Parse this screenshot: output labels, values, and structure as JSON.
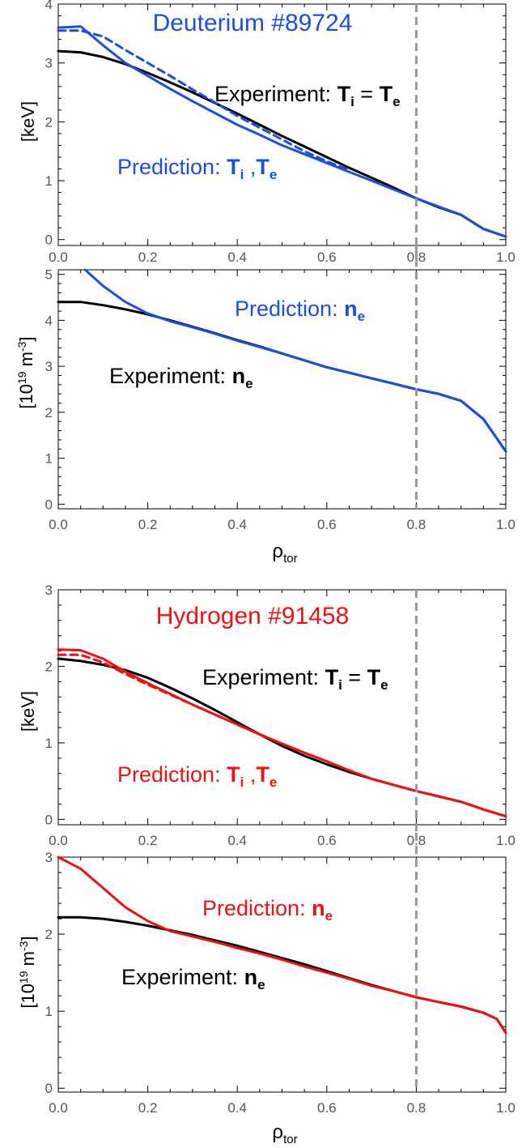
{
  "figure": {
    "marker_x": 0.8,
    "colors": {
      "deuterium": "#1a4fe0",
      "hydrogen": "#ee1111",
      "experiment": "#000000",
      "marker": "#999999"
    }
  },
  "chart_data": [
    {
      "type": "line",
      "panel": "deuterium-temperature",
      "title": "Deuterium #89724",
      "xlabel": "",
      "ylabel": "[keV]",
      "xlim": [
        0.0,
        1.0
      ],
      "ylim": [
        -0.1,
        4.0
      ],
      "xticks": [
        "0.0",
        "0.2",
        "0.4",
        "0.6",
        "0.8",
        "1.0"
      ],
      "yticks": [
        {
          "v": 0,
          "label": "0"
        },
        {
          "v": 1,
          "label": "1"
        },
        {
          "v": 2,
          "label": "2"
        },
        {
          "v": 3,
          "label": "3"
        },
        {
          "v": 4,
          "label": "4"
        }
      ],
      "series": [
        {
          "color": "#000000",
          "dash": false,
          "x": [
            0.0,
            0.05,
            0.1,
            0.15,
            0.2,
            0.25,
            0.3,
            0.35,
            0.4,
            0.45,
            0.5,
            0.55,
            0.6,
            0.65,
            0.7,
            0.75,
            0.8,
            0.85,
            0.9,
            0.95,
            1.0
          ],
          "y": [
            3.2,
            3.18,
            3.1,
            2.98,
            2.83,
            2.67,
            2.5,
            2.32,
            2.14,
            1.95,
            1.76,
            1.58,
            1.4,
            1.22,
            1.05,
            0.88,
            0.7,
            0.55,
            0.42,
            0.18,
            0.05
          ]
        },
        {
          "color": "#1a4fe0",
          "dash": false,
          "x": [
            0.0,
            0.05,
            0.1,
            0.15,
            0.2,
            0.25,
            0.3,
            0.35,
            0.4,
            0.45,
            0.5,
            0.55,
            0.6,
            0.65,
            0.7,
            0.75,
            0.8,
            0.85,
            0.9,
            0.95,
            1.0
          ],
          "y": [
            3.6,
            3.62,
            3.3,
            3.0,
            2.78,
            2.56,
            2.35,
            2.15,
            1.95,
            1.78,
            1.6,
            1.45,
            1.3,
            1.15,
            1.0,
            0.85,
            0.7,
            0.56,
            0.42,
            0.18,
            0.05
          ]
        },
        {
          "color": "#1a4fe0",
          "dash": true,
          "x": [
            0.0,
            0.05,
            0.1,
            0.15,
            0.2,
            0.25,
            0.3,
            0.35,
            0.4,
            0.45,
            0.5,
            0.55,
            0.6,
            0.65
          ],
          "y": [
            3.55,
            3.55,
            3.45,
            3.22,
            3.0,
            2.78,
            2.55,
            2.33,
            2.1,
            1.9,
            1.7,
            1.5,
            1.33,
            1.18
          ]
        }
      ],
      "annotations": [
        {
          "text": "Experiment: ",
          "em": "T",
          "sub": "i",
          "rest": " = ",
          "em2": "T",
          "sub2": "e",
          "color": "#000000"
        },
        {
          "text": "Prediction: ",
          "em": "T",
          "sub": "i",
          "rest": " ,",
          "em2": "T",
          "sub2": "e",
          "color": "#1a4fe0"
        }
      ]
    },
    {
      "type": "line",
      "panel": "deuterium-density",
      "title": "",
      "xlabel": "ρ",
      "xlabel_sub": "tor",
      "ylabel": "[10",
      "ylabel_sup": "19",
      "ylabel_unit": " m",
      "ylabel_sup2": "-3",
      "ylabel_end": "]",
      "xlim": [
        0.0,
        1.0
      ],
      "ylim": [
        -0.1,
        5.1
      ],
      "xticks": [
        "0.0",
        "0.2",
        "0.4",
        "0.6",
        "0.8",
        "1.0"
      ],
      "yticks": [
        {
          "v": 0,
          "label": "0"
        },
        {
          "v": 1,
          "label": "1"
        },
        {
          "v": 2,
          "label": "2"
        },
        {
          "v": 3,
          "label": "3"
        },
        {
          "v": 4,
          "label": "4"
        },
        {
          "v": 5,
          "label": "5"
        }
      ],
      "series": [
        {
          "color": "#000000",
          "dash": false,
          "x": [
            0.0,
            0.05,
            0.1,
            0.15,
            0.2,
            0.25,
            0.3,
            0.35,
            0.4,
            0.45,
            0.5,
            0.55,
            0.6,
            0.65,
            0.7,
            0.75,
            0.8,
            0.85,
            0.9,
            0.95,
            1.0
          ],
          "y": [
            4.4,
            4.4,
            4.33,
            4.24,
            4.13,
            4.0,
            3.86,
            3.72,
            3.57,
            3.43,
            3.28,
            3.13,
            2.98,
            2.86,
            2.74,
            2.62,
            2.5,
            2.4,
            2.25,
            1.85,
            1.15
          ]
        },
        {
          "color": "#1a4fe0",
          "dash": false,
          "x": [
            0.06,
            0.1,
            0.15,
            0.2,
            0.25,
            0.3,
            0.35,
            0.4,
            0.45,
            0.5,
            0.55,
            0.6,
            0.65,
            0.7,
            0.75,
            0.8,
            0.85,
            0.9,
            0.95,
            1.0
          ],
          "y": [
            5.1,
            4.75,
            4.4,
            4.15,
            3.98,
            3.85,
            3.71,
            3.56,
            3.42,
            3.28,
            3.13,
            2.98,
            2.86,
            2.74,
            2.62,
            2.5,
            2.4,
            2.25,
            1.85,
            1.15
          ]
        }
      ],
      "annotations": [
        {
          "text": "Prediction: ",
          "em": "n",
          "sub": "e",
          "color": "#1a4fe0"
        },
        {
          "text": "Experiment: ",
          "em": "n",
          "sub": "e",
          "color": "#000000"
        }
      ]
    },
    {
      "type": "line",
      "panel": "hydrogen-temperature",
      "title": "Hydrogen #91458",
      "xlabel": "",
      "ylabel": "[keV]",
      "xlim": [
        0.0,
        1.0
      ],
      "ylim": [
        -0.07,
        3.0
      ],
      "xticks": [
        "0.0",
        "0.2",
        "0.4",
        "0.6",
        "0.8",
        "1.0"
      ],
      "yticks": [
        {
          "v": 0,
          "label": "0"
        },
        {
          "v": 1,
          "label": "1"
        },
        {
          "v": 2,
          "label": "2"
        },
        {
          "v": 3,
          "label": "3"
        }
      ],
      "series": [
        {
          "color": "#000000",
          "dash": false,
          "x": [
            0.0,
            0.05,
            0.1,
            0.15,
            0.2,
            0.25,
            0.3,
            0.35,
            0.4,
            0.45,
            0.5,
            0.55,
            0.6,
            0.65,
            0.7,
            0.75,
            0.8,
            0.85,
            0.9,
            0.95,
            1.0
          ],
          "y": [
            2.1,
            2.07,
            2.02,
            1.95,
            1.85,
            1.72,
            1.58,
            1.43,
            1.27,
            1.11,
            0.96,
            0.83,
            0.72,
            0.62,
            0.53,
            0.45,
            0.37,
            0.3,
            0.23,
            0.13,
            0.04
          ]
        },
        {
          "color": "#ee1111",
          "dash": false,
          "x": [
            0.0,
            0.05,
            0.1,
            0.15,
            0.2,
            0.25,
            0.3,
            0.35,
            0.4,
            0.45,
            0.5,
            0.55,
            0.6,
            0.65,
            0.7,
            0.75,
            0.8,
            0.85,
            0.9,
            0.95,
            1.0
          ],
          "y": [
            2.22,
            2.21,
            2.1,
            1.93,
            1.78,
            1.64,
            1.5,
            1.37,
            1.24,
            1.11,
            0.99,
            0.87,
            0.76,
            0.64,
            0.53,
            0.45,
            0.37,
            0.3,
            0.23,
            0.13,
            0.04
          ]
        },
        {
          "color": "#ee1111",
          "dash": true,
          "x": [
            0.0,
            0.05,
            0.1,
            0.15,
            0.2,
            0.25,
            0.3,
            0.35,
            0.4,
            0.45,
            0.5,
            0.55,
            0.6
          ],
          "y": [
            2.15,
            2.15,
            2.05,
            1.9,
            1.76,
            1.63,
            1.5,
            1.37,
            1.24,
            1.11,
            0.99,
            0.87,
            0.76
          ]
        }
      ],
      "annotations": [
        {
          "text": "Experiment: ",
          "em": "T",
          "sub": "i",
          "rest": " = ",
          "em2": "T",
          "sub2": "e",
          "color": "#000000"
        },
        {
          "text": "Prediction: ",
          "em": "T",
          "sub": "i",
          "rest": " ,",
          "em2": "T",
          "sub2": "e",
          "color": "#ee1111"
        }
      ]
    },
    {
      "type": "line",
      "panel": "hydrogen-density",
      "title": "",
      "xlabel": "ρ",
      "xlabel_sub": "tor",
      "ylabel": "[10",
      "ylabel_sup": "19",
      "ylabel_unit": " m",
      "ylabel_sup2": "-3",
      "ylabel_end": "]",
      "xlim": [
        0.0,
        1.0
      ],
      "ylim": [
        -0.05,
        3.0
      ],
      "xticks": [
        "0.0",
        "0.2",
        "0.4",
        "0.6",
        "0.8",
        "1.0"
      ],
      "yticks": [
        {
          "v": 0,
          "label": "0"
        },
        {
          "v": 1,
          "label": "1"
        },
        {
          "v": 2,
          "label": "2"
        },
        {
          "v": 3,
          "label": "3"
        }
      ],
      "series": [
        {
          "color": "#000000",
          "dash": false,
          "x": [
            0.0,
            0.05,
            0.1,
            0.15,
            0.2,
            0.25,
            0.3,
            0.35,
            0.4,
            0.45,
            0.5,
            0.55,
            0.6,
            0.65,
            0.7,
            0.75,
            0.8,
            0.85,
            0.9,
            0.95,
            0.98,
            1.0
          ],
          "y": [
            2.22,
            2.22,
            2.2,
            2.16,
            2.11,
            2.05,
            1.99,
            1.92,
            1.85,
            1.77,
            1.69,
            1.61,
            1.52,
            1.43,
            1.34,
            1.26,
            1.18,
            1.12,
            1.06,
            0.98,
            0.9,
            0.72
          ]
        },
        {
          "color": "#ee1111",
          "dash": false,
          "x": [
            0.0,
            0.05,
            0.1,
            0.15,
            0.2,
            0.25,
            0.3,
            0.35,
            0.4,
            0.45,
            0.5,
            0.55,
            0.6,
            0.65,
            0.7,
            0.75,
            0.8,
            0.85,
            0.9,
            0.95,
            0.98,
            1.0
          ],
          "y": [
            3.0,
            2.85,
            2.6,
            2.35,
            2.17,
            2.04,
            1.97,
            1.9,
            1.82,
            1.75,
            1.67,
            1.58,
            1.5,
            1.42,
            1.33,
            1.26,
            1.18,
            1.12,
            1.06,
            0.98,
            0.9,
            0.72
          ]
        }
      ],
      "annotations": [
        {
          "text": "Prediction: ",
          "em": "n",
          "sub": "e",
          "color": "#ee1111"
        },
        {
          "text": "Experiment: ",
          "em": "n",
          "sub": "e",
          "color": "#000000"
        }
      ]
    }
  ]
}
